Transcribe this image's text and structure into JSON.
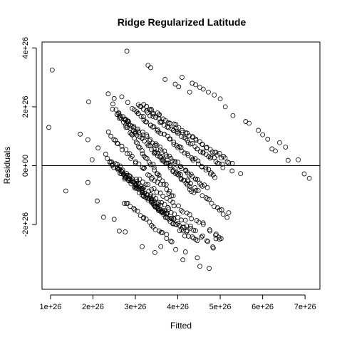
{
  "chart_data": {
    "type": "scatter",
    "title": "Ridge Regularized Latitude",
    "xlabel": "Fitted",
    "ylabel": "Residuals",
    "xlim": [
      8e+25,
      7.35e+26
    ],
    "ylim": [
      -4.2e+26,
      4.2e+26
    ],
    "x_ticks": [
      1e+26,
      2e+26,
      3e+26,
      4e+26,
      5e+26,
      6e+26,
      7e+26
    ],
    "x_tick_labels": [
      "1e+26",
      "2e+26",
      "3e+26",
      "4e+26",
      "5e+26",
      "6e+26",
      "7e+26"
    ],
    "y_ticks": [
      -2e+26,
      0,
      2e+26,
      4e+26
    ],
    "y_tick_labels": [
      "-2e+26",
      "0e+00",
      "2e+26",
      "4e+26"
    ],
    "hline": 0,
    "grid": false,
    "legend": "none",
    "marker": "open-circle",
    "series": [
      {
        "points": [
          [
            9.6e+25,
            1.3e+26
          ],
          [
            1.04e+26,
            3.25e+26
          ],
          [
            1.36e+26,
            -8.6e+25
          ],
          [
            1.7e+26,
            1.07e+26
          ],
          [
            1.88e+26,
            8.8e+25
          ],
          [
            1.9e+26,
            2.17e+26
          ],
          [
            1.88e+26,
            -5.7e+25
          ],
          [
            1.98e+26,
            2e+25
          ],
          [
            2.12e+26,
            6e+25
          ],
          [
            2.1e+26,
            -1.2e+26
          ],
          [
            2.25e+26,
            -1.75e+26
          ],
          [
            2.36e+26,
            2.44e+26
          ],
          [
            2.5e+26,
            2.28e+26
          ],
          [
            2.68e+26,
            2.34e+26
          ],
          [
            2.82e+26,
            2.15e+26
          ],
          [
            2.8e+26,
            3.89e+26
          ],
          [
            3.3e+26,
            3.41e+26
          ],
          [
            3.36e+26,
            3.33e+26
          ],
          [
            3.7e+26,
            2.93e+26
          ],
          [
            3.94e+26,
            2.77e+26
          ],
          [
            4.02e+26,
            2.68e+26
          ],
          [
            4.1e+26,
            3e+26
          ],
          [
            4.28e+26,
            2.5e+26
          ],
          [
            4.34e+26,
            2.8e+26
          ],
          [
            4.42e+26,
            2.75e+26
          ],
          [
            4.52e+26,
            2.66e+26
          ],
          [
            4.6e+26,
            2.6e+26
          ],
          [
            4.72e+26,
            2.5e+26
          ],
          [
            4.86e+26,
            2.4e+26
          ],
          [
            5e+26,
            2.27e+26
          ],
          [
            5.12e+26,
            2e+26
          ],
          [
            5.3e+26,
            1.7e+26
          ],
          [
            5.6e+26,
            1.5e+26
          ],
          [
            5.68e+26,
            1.44e+26
          ],
          [
            5.9e+26,
            1.2e+26
          ],
          [
            6e+26,
            1.05e+26
          ],
          [
            6.12e+26,
            9e+25
          ],
          [
            6.22e+26,
            5.7e+25
          ],
          [
            6.3e+26,
            5e+25
          ],
          [
            6.4e+26,
            7.8e+25
          ],
          [
            6.54e+26,
            6.3e+25
          ],
          [
            6.6e+26,
            1.8e+25
          ],
          [
            6.84e+26,
            2e+25
          ],
          [
            6.98e+26,
            -2.8e+25
          ],
          [
            7.1e+26,
            -4.3e+25
          ],
          [
            5.48e+26,
            -2.7e+25
          ],
          [
            5.28e+26,
            -1.8e+25
          ],
          [
            5.2e+26,
            -1.6e+26
          ],
          [
            4.98e+26,
            -2.5e+26
          ],
          [
            4.9e+26,
            -2.48e+26
          ],
          [
            4.74e+26,
            -3.49e+26
          ],
          [
            4.46e+26,
            -3.13e+26
          ],
          [
            4.18e+26,
            -2.93e+26
          ],
          [
            4.12e+26,
            -3.2e+26
          ],
          [
            3.95e+26,
            -2.85e+26
          ],
          [
            3.46e+26,
            -2.95e+26
          ],
          [
            3.6e+26,
            -2.75e+26
          ],
          [
            4.52e+26,
            -3.42e+26
          ],
          [
            3.16e+26,
            -2.75e+26
          ],
          [
            2.76e+26,
            -2.25e+26
          ],
          [
            2.62e+26,
            -2.22e+26
          ],
          [
            2.5e+26,
            -1.82e+26
          ]
        ]
      }
    ],
    "diagonal_bands": [
      {
        "x0": 2.45e+26,
        "x1": 3.9e+26,
        "y0": 2.05e+26,
        "y1": -1.1e+26,
        "n": 42
      },
      {
        "x0": 2.55e+26,
        "x1": 4.4e+26,
        "y0": 1.8e+26,
        "y1": -9e+25,
        "n": 48
      },
      {
        "x0": 2.7e+26,
        "x1": 4.7e+26,
        "y0": 1.65e+26,
        "y1": -8e+25,
        "n": 50
      },
      {
        "x0": 2.9e+26,
        "x1": 4.9e+26,
        "y0": 1.95e+26,
        "y1": -4e+25,
        "n": 48
      },
      {
        "x0": 3.05e+26,
        "x1": 5.1e+26,
        "y0": 2.05e+26,
        "y1": -5e+24,
        "n": 46
      },
      {
        "x0": 3.2e+26,
        "x1": 5.3e+26,
        "y0": 2.05e+26,
        "y1": 5e+24,
        "n": 44
      },
      {
        "x0": 2.3e+26,
        "x1": 3.7e+26,
        "y0": 3.5e+25,
        "y1": -1.7e+26,
        "n": 34
      },
      {
        "x0": 2.4e+26,
        "x1": 3.9e+26,
        "y0": 1e+25,
        "y1": -2e+26,
        "n": 34
      },
      {
        "x0": 2.55e+26,
        "x1": 4.25e+26,
        "y0": 5e+24,
        "y1": -2.45e+26,
        "n": 36
      },
      {
        "x0": 2.65e+26,
        "x1": 4.5e+26,
        "y0": -2e+25,
        "y1": -2.6e+26,
        "n": 34
      },
      {
        "x0": 2.8e+26,
        "x1": 4.9e+26,
        "y0": -3e+25,
        "y1": -2.8e+26,
        "n": 32
      },
      {
        "x0": 3e+26,
        "x1": 5.1e+26,
        "y0": -3.5e+25,
        "y1": -2.55e+26,
        "n": 30
      },
      {
        "x0": 2.7e+26,
        "x1": 3.9e+26,
        "y0": -1.2e+26,
        "y1": -2.6e+26,
        "n": 22
      },
      {
        "x0": 3.4e+26,
        "x1": 5.2e+26,
        "y0": 5e+25,
        "y1": -1.75e+26,
        "n": 30
      },
      {
        "x0": 2.35e+26,
        "x1": 3.6e+26,
        "y0": 1.1e+26,
        "y1": -7e+25,
        "n": 26
      }
    ]
  }
}
